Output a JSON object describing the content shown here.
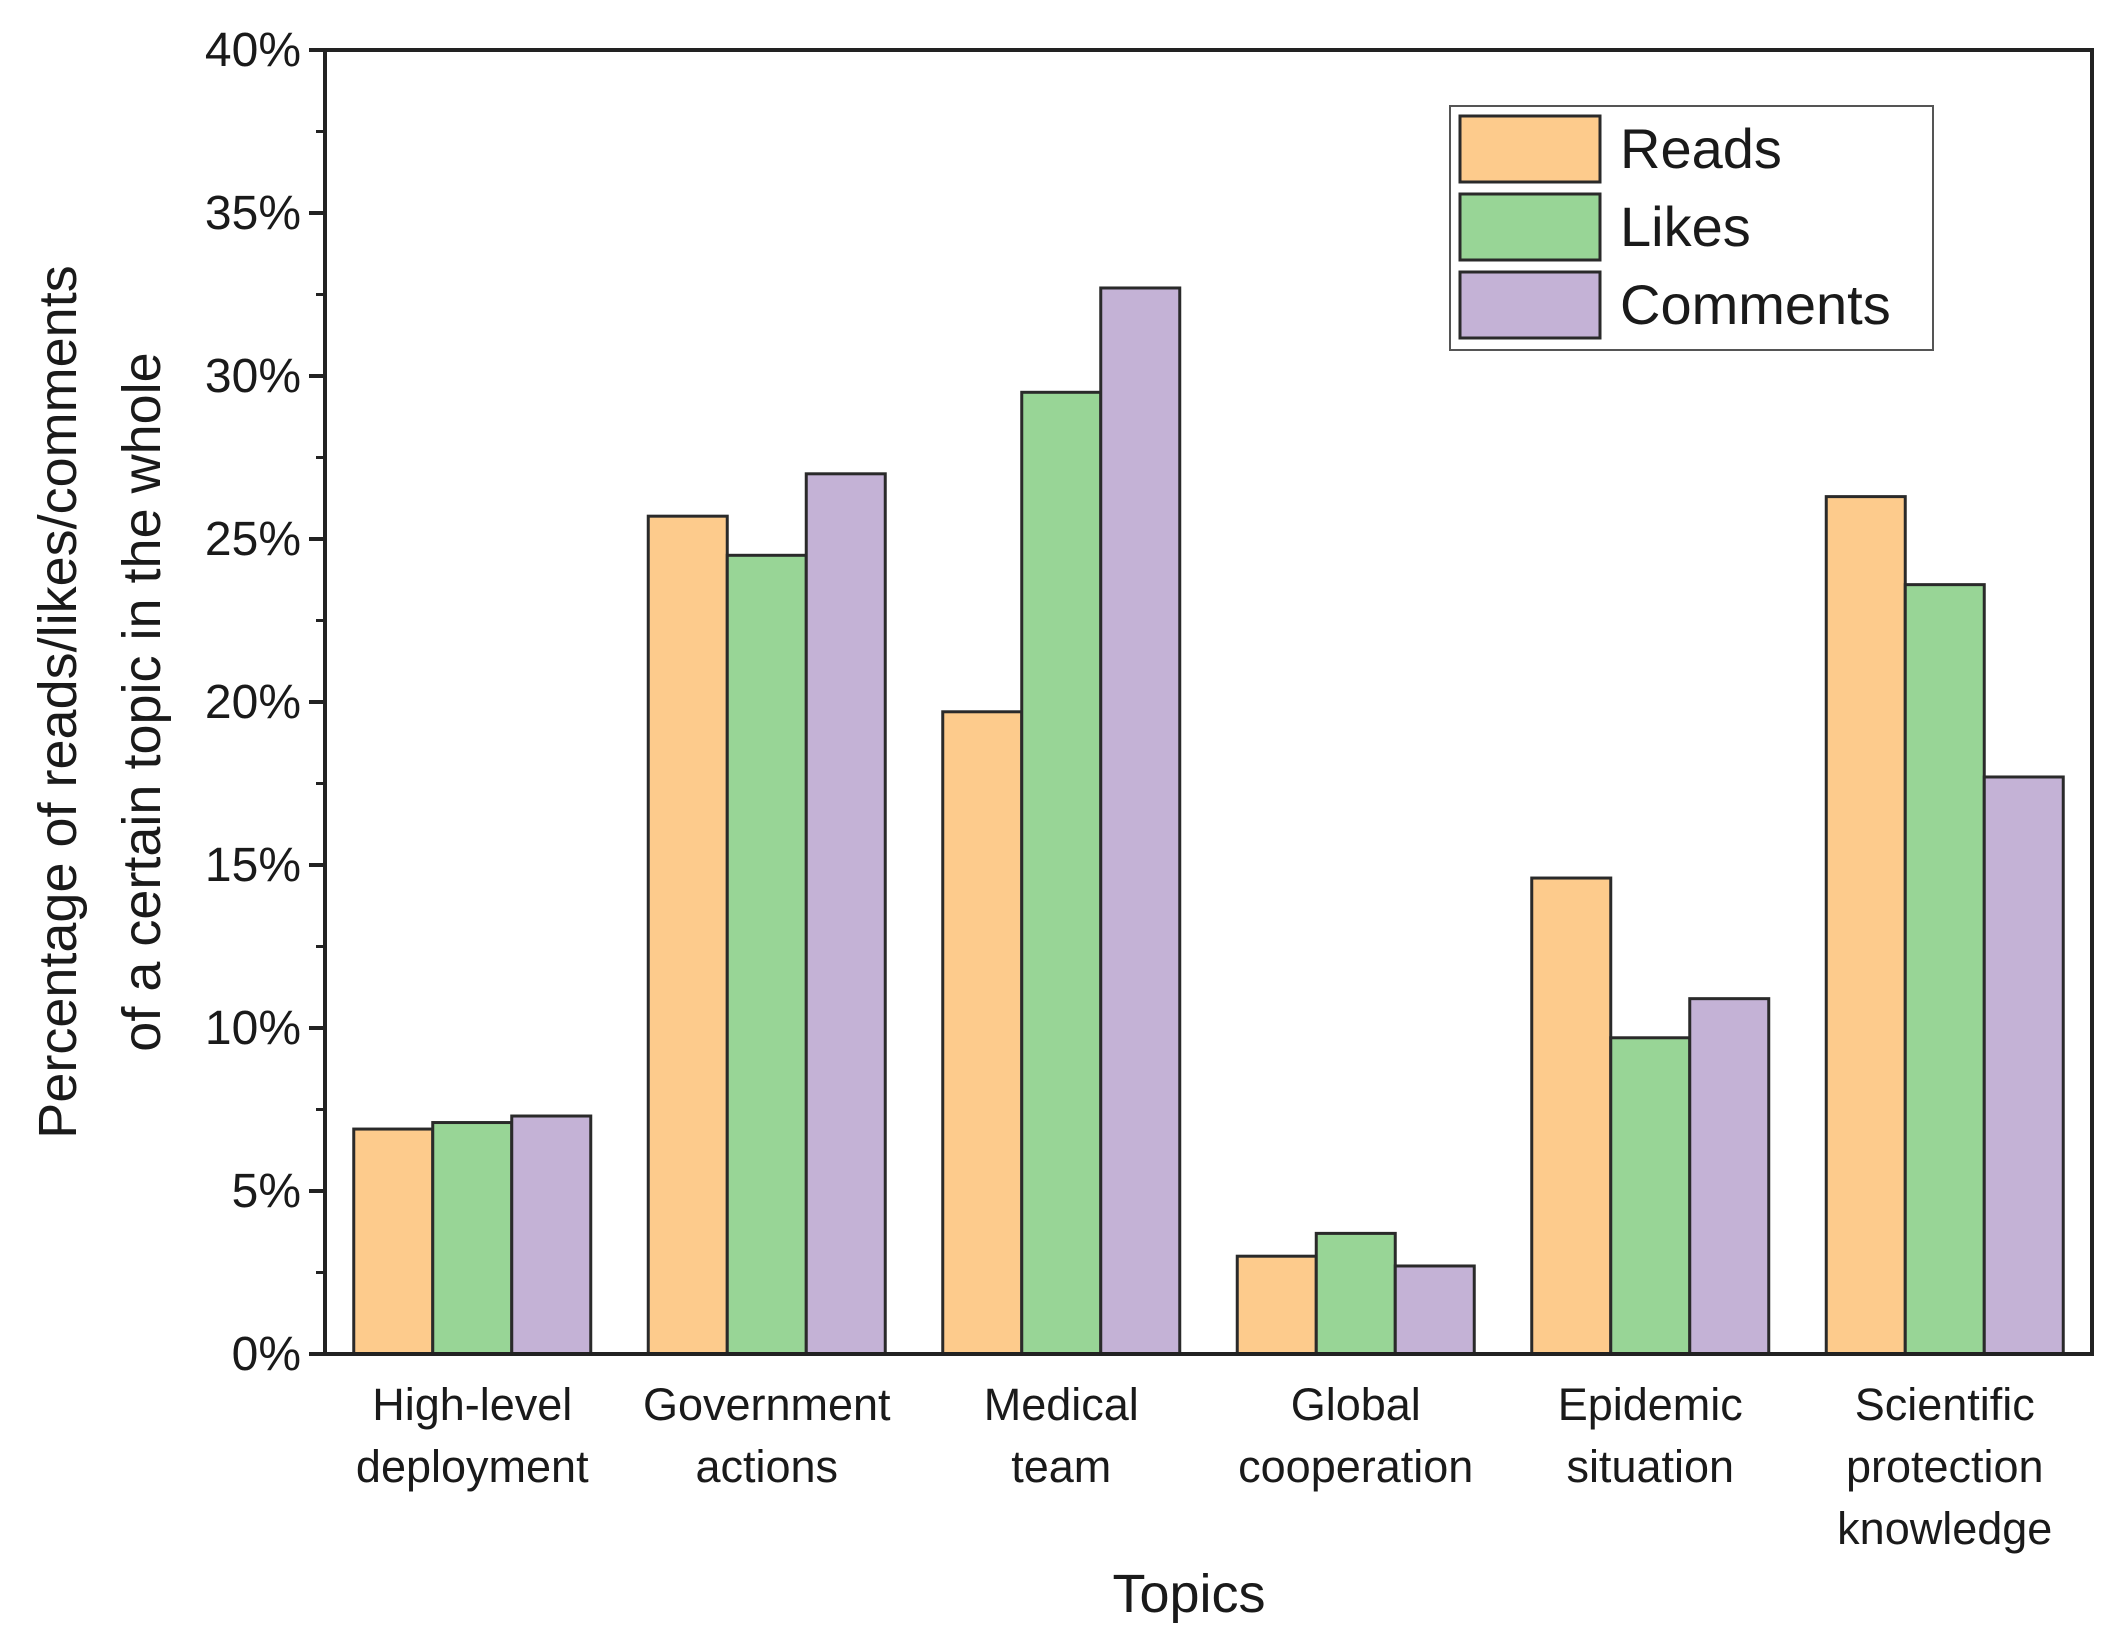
{
  "chart_data": {
    "type": "bar",
    "title": "",
    "xlabel": "Topics",
    "ylabel_lines": [
      "Percentage of reads/likes/comments",
      "of a certain topic in the whole"
    ],
    "ylim": [
      0,
      40
    ],
    "yticks": [
      0,
      5,
      10,
      15,
      20,
      25,
      30,
      35,
      40
    ],
    "ytick_labels": [
      "0%",
      "5%",
      "10%",
      "15%",
      "20%",
      "25%",
      "30%",
      "35%",
      "40%"
    ],
    "categories": [
      [
        "High-level",
        "deployment"
      ],
      [
        "Government",
        "actions"
      ],
      [
        "Medical",
        "team"
      ],
      [
        "Global",
        "cooperation"
      ],
      [
        "Epidemic",
        "situation"
      ],
      [
        "Scientific",
        "protection",
        "knowledge"
      ]
    ],
    "series": [
      {
        "name": "Reads",
        "color": "#fdcb8c",
        "values": [
          6.9,
          25.7,
          19.7,
          3.0,
          14.6,
          26.3
        ]
      },
      {
        "name": "Likes",
        "color": "#98d596",
        "values": [
          7.1,
          24.5,
          29.5,
          3.7,
          9.7,
          23.6
        ]
      },
      {
        "name": "Comments",
        "color": "#c4b2d6",
        "values": [
          7.3,
          27.0,
          32.7,
          2.7,
          10.9,
          17.7
        ]
      }
    ],
    "legend_position": "top-right",
    "grid": false
  }
}
